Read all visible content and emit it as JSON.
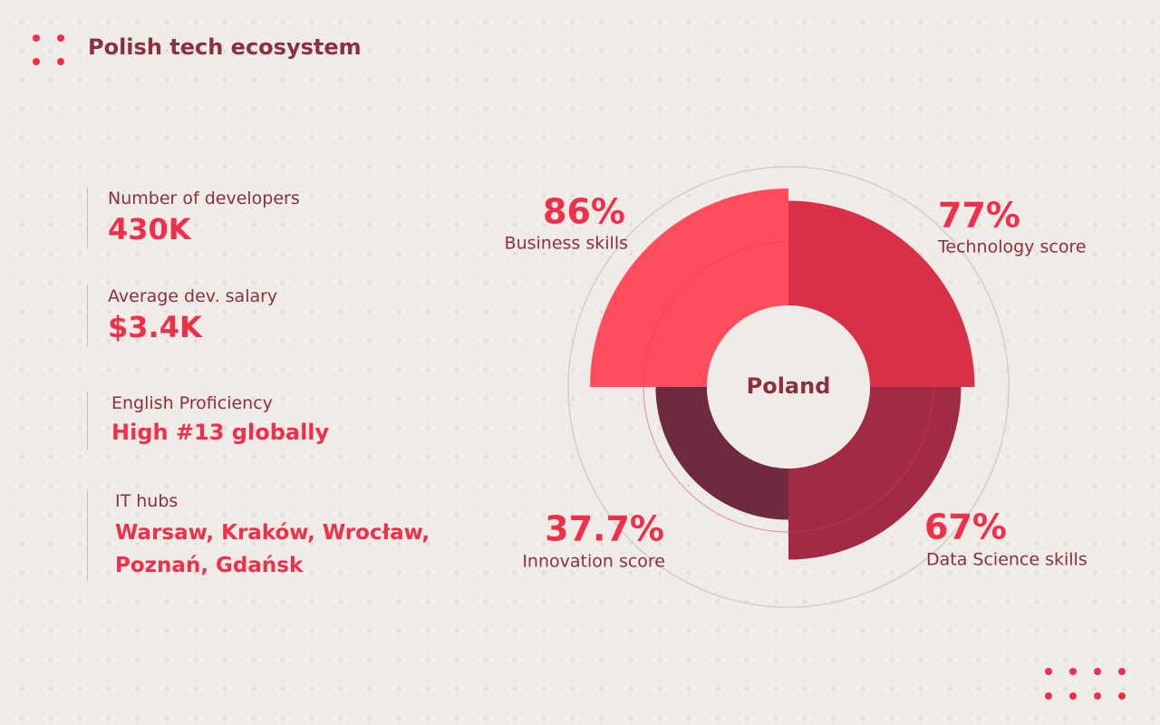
{
  "header": {
    "title": "Polish tech ecosystem"
  },
  "stats": [
    {
      "label": "Number of developers",
      "value": "430K"
    },
    {
      "label": "Average dev. salary",
      "value": "$3.4K"
    },
    {
      "label": "English Proficiency",
      "value": "High #13 globally"
    },
    {
      "label": "IT hubs",
      "value_lines": [
        "Warsaw, Kraków, Wrocław,",
        "Poznań, Gdańsk"
      ]
    }
  ],
  "chart_data": {
    "type": "polar",
    "center_label": "Poland",
    "categories": [
      "Business skills",
      "Technology score",
      "Data Science skills",
      "Innovation score"
    ],
    "values": [
      86,
      77,
      67,
      37.7
    ],
    "value_labels": [
      "86%",
      "77%",
      "67%",
      "37.7%"
    ],
    "colors": [
      "#ff4d5e",
      "#d9304a",
      "#a32a45",
      "#6e2a3e"
    ],
    "rlim": [
      0,
      100
    ]
  }
}
